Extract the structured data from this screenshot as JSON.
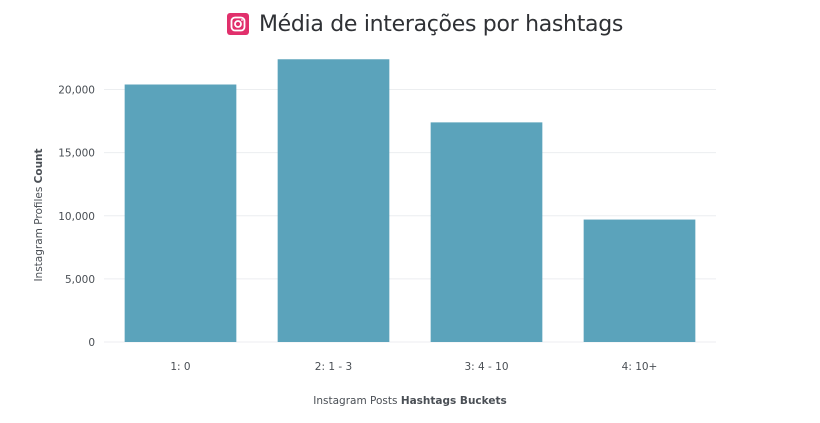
{
  "title": "Média de interações por hashtags",
  "icon": "instagram-icon",
  "colors": {
    "bar": "#5ba3bb",
    "icon": "#e1306c",
    "grid": "#eceef0"
  },
  "chart_data": {
    "type": "bar",
    "categories": [
      "1: 0",
      "2: 1 - 3",
      "3: 4 - 10",
      "4: 10+"
    ],
    "values": [
      20400,
      22400,
      17400,
      9700
    ],
    "ylim": [
      0,
      22500
    ],
    "yticks": [
      0,
      5000,
      10000,
      15000,
      20000
    ],
    "ytick_labels": [
      "0",
      "5,000",
      "10,000",
      "15,000",
      "20,000"
    ],
    "xlabel_prefix": "Instagram Posts ",
    "xlabel_bold": "Hashtags Buckets",
    "ylabel_prefix": "Instagram Profiles ",
    "ylabel_bold": "Count",
    "grid": true,
    "legend": "none"
  }
}
